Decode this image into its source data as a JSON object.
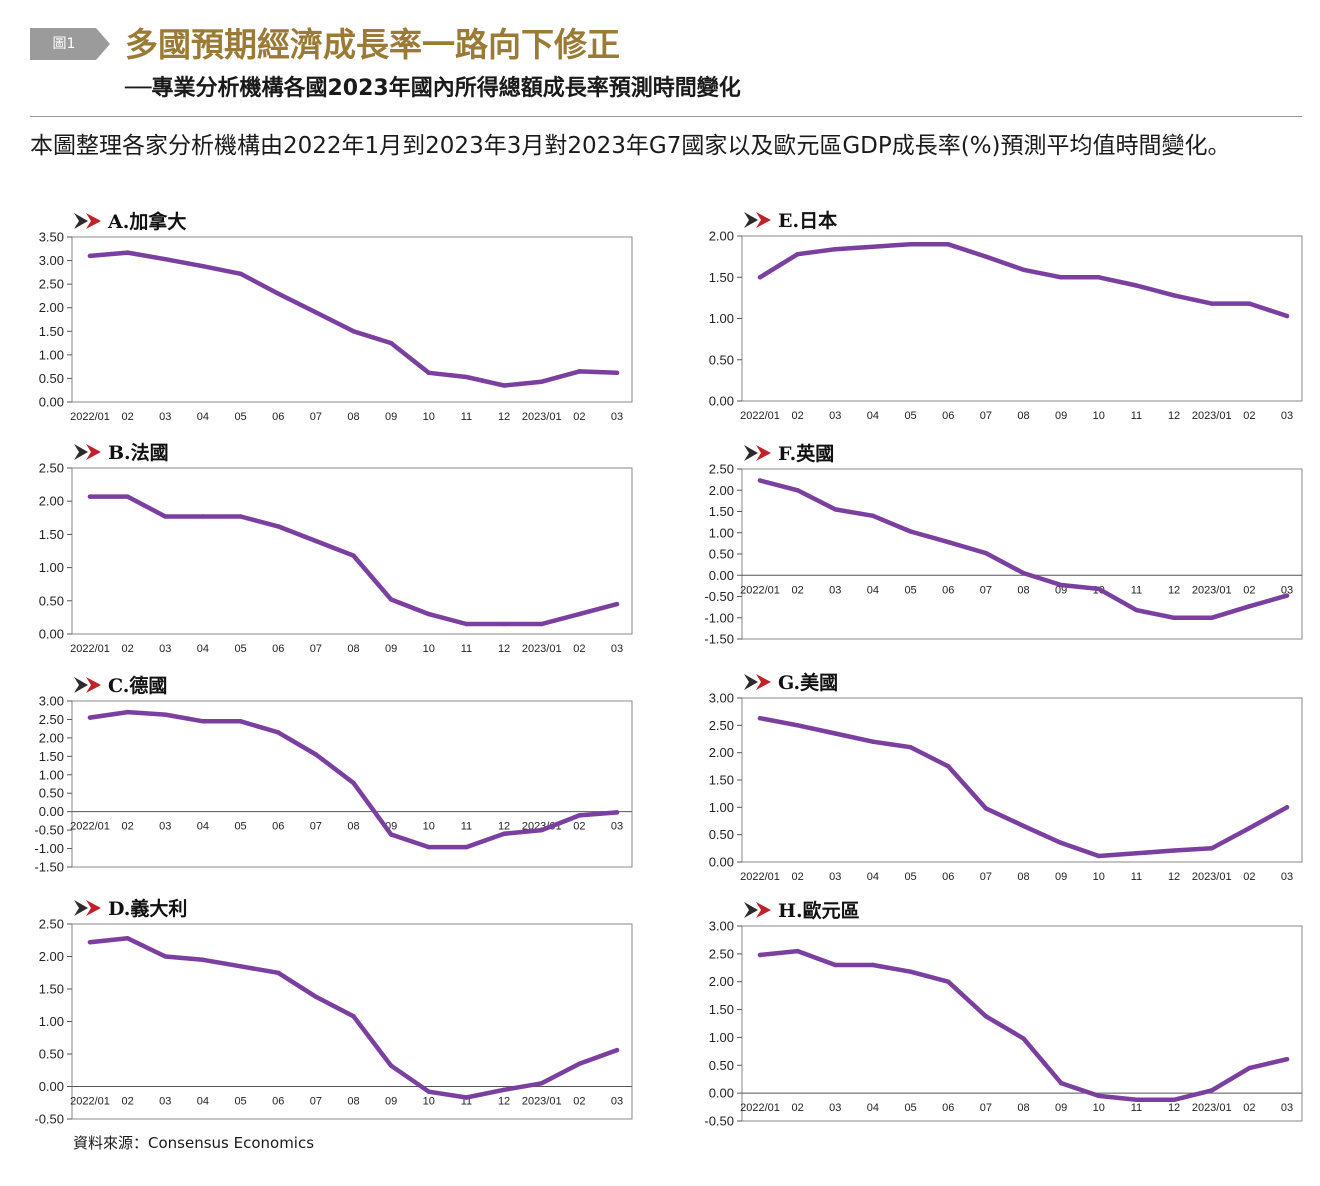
{
  "header": {
    "figure_label": "圖1",
    "title": "多國預期經濟成長率一路向下修正",
    "subtitle": "──專業分析機構各國2023年國內所得總額成長率預測時間變化"
  },
  "intro": "本圖整理各家分析機構由2022年1月到2023年3月對2023年G7國家以及歐元區GDP成長率(%)預測平均值時間變化。",
  "source": "資料來源：Consensus Economics",
  "colors": {
    "line": "#7b3fa0",
    "title": "#9a7a35",
    "arrow_dark": "#2b2b2b",
    "arrow_red": "#c0222a"
  },
  "chart_data": [
    {
      "type": "line",
      "title": "A.加拿大",
      "ylim": [
        0,
        3.5
      ],
      "yticks": [
        "3.50",
        "3.00",
        "2.50",
        "2.00",
        "1.50",
        "1.00",
        "0.50",
        "0.00"
      ],
      "x": [
        "2022/01",
        "02",
        "03",
        "04",
        "05",
        "06",
        "07",
        "08",
        "09",
        "10",
        "11",
        "12",
        "2023/01",
        "02",
        "03"
      ],
      "values": [
        3.1,
        3.17,
        3.03,
        2.88,
        2.72,
        2.3,
        1.9,
        1.5,
        1.25,
        0.62,
        0.53,
        0.35,
        0.43,
        0.65,
        0.62
      ]
    },
    {
      "type": "line",
      "title": "B.法國",
      "ylim": [
        0,
        2.5
      ],
      "yticks": [
        "2.50",
        "2.00",
        "1.50",
        "1.00",
        "0.50",
        "0.00"
      ],
      "x": [
        "2022/01",
        "02",
        "03",
        "04",
        "05",
        "06",
        "07",
        "08",
        "09",
        "10",
        "11",
        "12",
        "2023/01",
        "02",
        "03"
      ],
      "values": [
        2.07,
        2.07,
        1.77,
        1.77,
        1.77,
        1.62,
        1.4,
        1.18,
        0.52,
        0.3,
        0.15,
        0.15,
        0.15,
        0.3,
        0.45
      ]
    },
    {
      "type": "line",
      "title": "C.德國",
      "ylim": [
        -1.5,
        3.0
      ],
      "yticks": [
        "3.00",
        "2.50",
        "2.00",
        "1.50",
        "1.00",
        "0.50",
        "0.00",
        "-0.50",
        "-1.00",
        "-1.50"
      ],
      "x": [
        "2022/01",
        "02",
        "03",
        "04",
        "05",
        "06",
        "07",
        "08",
        "09",
        "10",
        "11",
        "12",
        "2023/01",
        "02",
        "03"
      ],
      "values": [
        2.55,
        2.7,
        2.63,
        2.45,
        2.45,
        2.15,
        1.55,
        0.78,
        -0.62,
        -0.96,
        -0.96,
        -0.6,
        -0.5,
        -0.1,
        -0.02
      ]
    },
    {
      "type": "line",
      "title": "D.義大利",
      "ylim": [
        -0.5,
        2.5
      ],
      "yticks": [
        "2.50",
        "2.00",
        "1.50",
        "1.00",
        "0.50",
        "0.00",
        "-0.50"
      ],
      "x": [
        "2022/01",
        "02",
        "03",
        "04",
        "05",
        "06",
        "07",
        "08",
        "09",
        "10",
        "11",
        "12",
        "2023/01",
        "02",
        "03"
      ],
      "values": [
        2.22,
        2.28,
        2.0,
        1.95,
        1.85,
        1.75,
        1.38,
        1.08,
        0.32,
        -0.08,
        -0.17,
        -0.05,
        0.05,
        0.35,
        0.56
      ]
    },
    {
      "type": "line",
      "title": "E.日本",
      "ylim": [
        0,
        2.0
      ],
      "yticks": [
        "2.00",
        "1.50",
        "1.00",
        "0.50",
        "0.00"
      ],
      "x": [
        "2022/01",
        "02",
        "03",
        "04",
        "05",
        "06",
        "07",
        "08",
        "09",
        "10",
        "11",
        "12",
        "2023/01",
        "02",
        "03"
      ],
      "values": [
        1.5,
        1.78,
        1.84,
        1.87,
        1.9,
        1.9,
        1.75,
        1.59,
        1.5,
        1.5,
        1.4,
        1.28,
        1.18,
        1.18,
        1.03
      ]
    },
    {
      "type": "line",
      "title": "F.英國",
      "ylim": [
        -1.5,
        2.5
      ],
      "yticks": [
        "2.50",
        "2.00",
        "1.50",
        "1.00",
        "0.50",
        "0.00",
        "-0.50",
        "-1.00",
        "-1.50"
      ],
      "x": [
        "2022/01",
        "02",
        "03",
        "04",
        "05",
        "06",
        "07",
        "08",
        "09",
        "10",
        "11",
        "12",
        "2023/01",
        "02",
        "03"
      ],
      "values": [
        2.23,
        2.0,
        1.55,
        1.4,
        1.03,
        0.78,
        0.52,
        0.05,
        -0.23,
        -0.32,
        -0.82,
        -1.0,
        -1.0,
        -0.73,
        -0.48
      ]
    },
    {
      "type": "line",
      "title": "G.美國",
      "ylim": [
        0,
        3.0
      ],
      "yticks": [
        "3.00",
        "2.50",
        "2.00",
        "1.50",
        "1.00",
        "0.50",
        "0.00"
      ],
      "x": [
        "2022/01",
        "02",
        "03",
        "04",
        "05",
        "06",
        "07",
        "08",
        "09",
        "10",
        "11",
        "12",
        "2023/01",
        "02",
        "03"
      ],
      "values": [
        2.63,
        2.5,
        2.35,
        2.2,
        2.1,
        1.75,
        0.98,
        0.66,
        0.35,
        0.11,
        0.16,
        0.21,
        0.25,
        0.62,
        1.0
      ]
    },
    {
      "type": "line",
      "title": "H.歐元區",
      "ylim": [
        -0.5,
        3.0
      ],
      "yticks": [
        "3.00",
        "2.50",
        "2.00",
        "1.50",
        "1.00",
        "0.50",
        "0.00",
        "-0.50"
      ],
      "x": [
        "2022/01",
        "02",
        "03",
        "04",
        "05",
        "06",
        "07",
        "08",
        "09",
        "10",
        "11",
        "12",
        "2023/01",
        "02",
        "03"
      ],
      "values": [
        2.48,
        2.55,
        2.3,
        2.3,
        2.18,
        2.0,
        1.38,
        0.98,
        0.18,
        -0.05,
        -0.12,
        -0.12,
        0.05,
        0.45,
        0.61
      ]
    }
  ]
}
